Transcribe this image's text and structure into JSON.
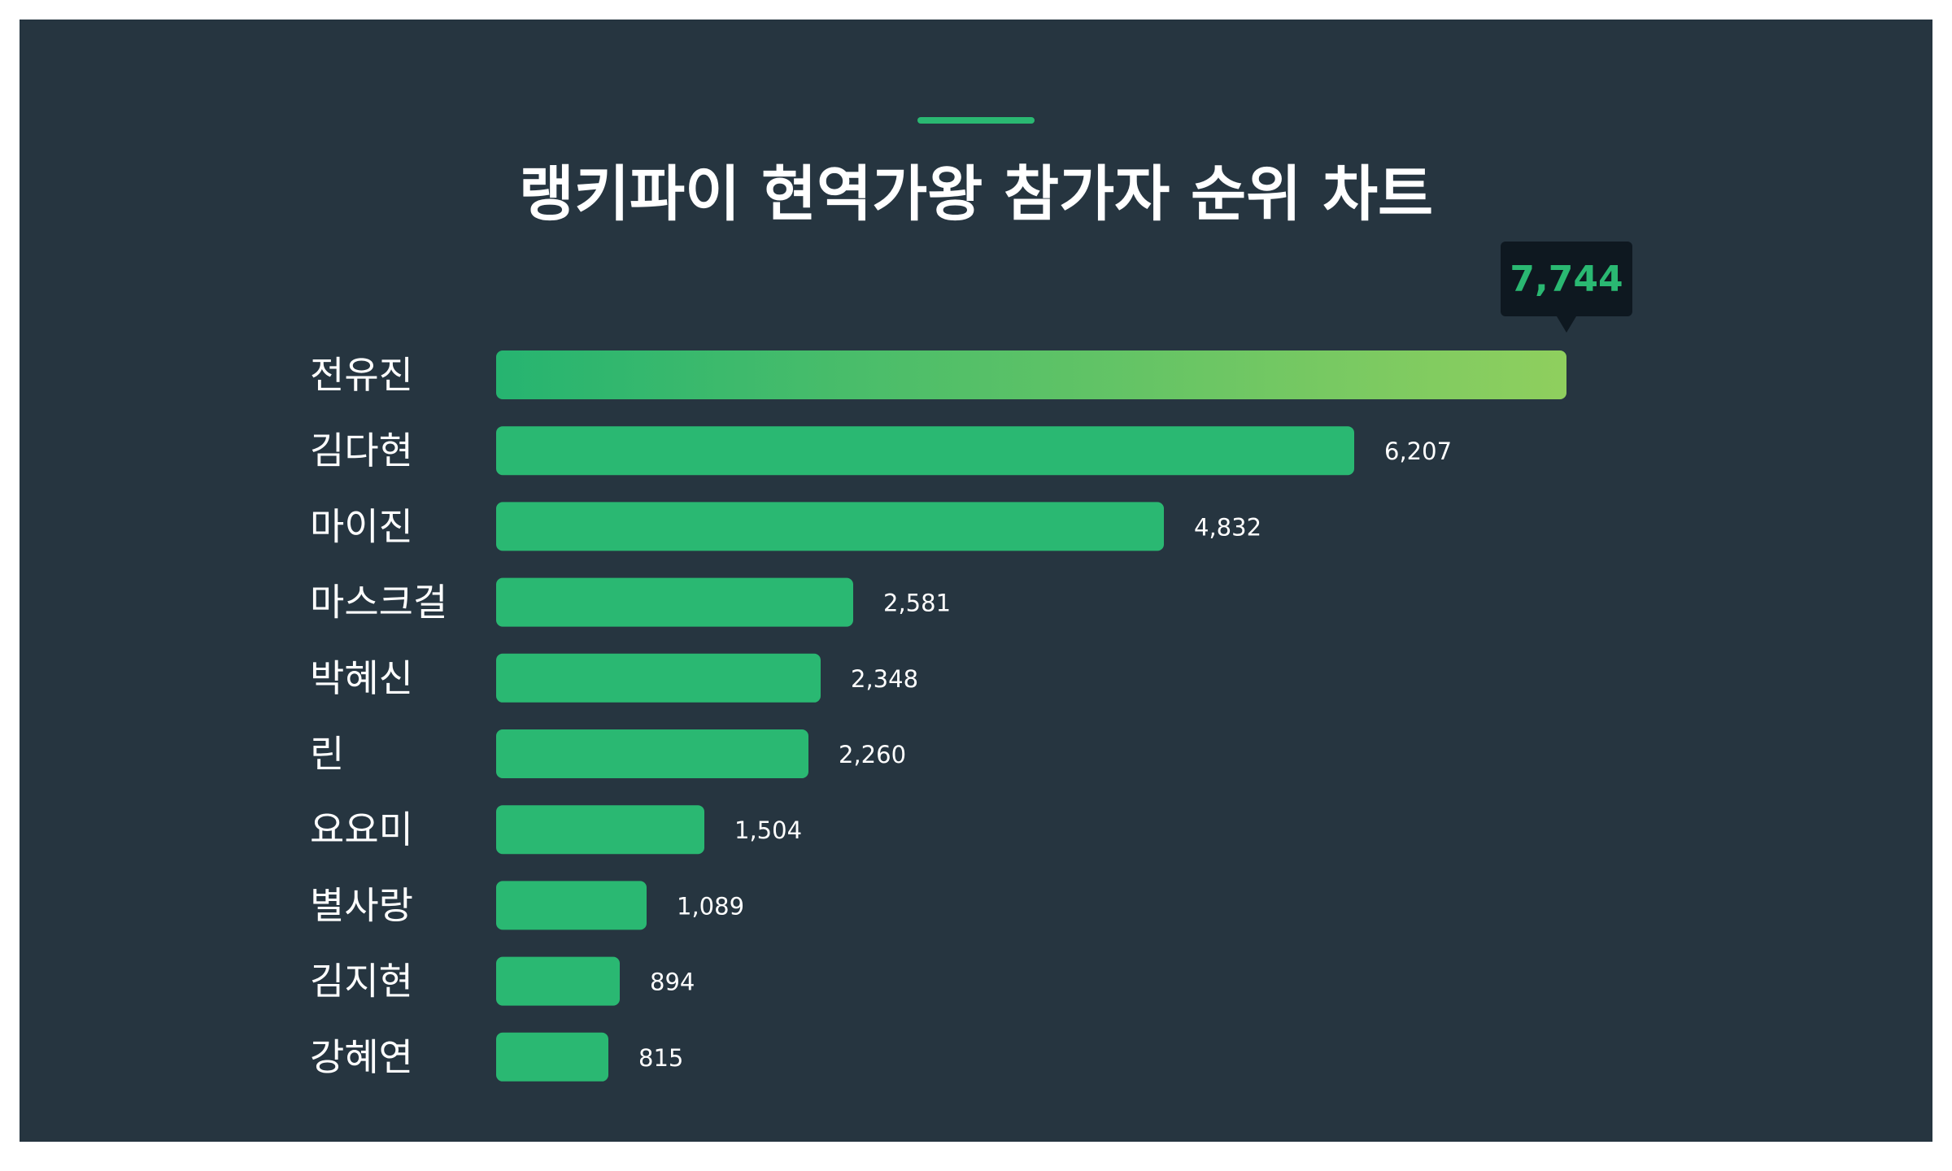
{
  "header": {
    "title": "랭키파이 현역가왕 참가자 순위 차트"
  },
  "colors": {
    "background": "#263540",
    "bar": "#2ab872",
    "bar_gradient_start": "#26b470",
    "bar_gradient_end": "#8fcf5e",
    "accent": "#2ab872",
    "tooltip_bg": "#0e1820",
    "tooltip_text": "#2ab872",
    "label": "#ffffff"
  },
  "chart_data": {
    "type": "bar",
    "orientation": "horizontal",
    "title": "랭키파이 현역가왕 참가자 순위 차트",
    "categories": [
      "전유진",
      "김다현",
      "마이진",
      "마스크걸",
      "박혜신",
      "린",
      "요요미",
      "별사랑",
      "김지현",
      "강혜연"
    ],
    "values": [
      7744,
      6207,
      4832,
      2581,
      2348,
      2260,
      1504,
      1089,
      894,
      815
    ],
    "value_labels": [
      "7,744",
      "6,207",
      "4,832",
      "2,581",
      "2,348",
      "2,260",
      "1,504",
      "1,089",
      "894",
      "815"
    ],
    "highlight_index": 0,
    "xlabel": "",
    "ylabel": "",
    "xlim": [
      0,
      7744
    ],
    "grid": false,
    "legend": "none"
  }
}
